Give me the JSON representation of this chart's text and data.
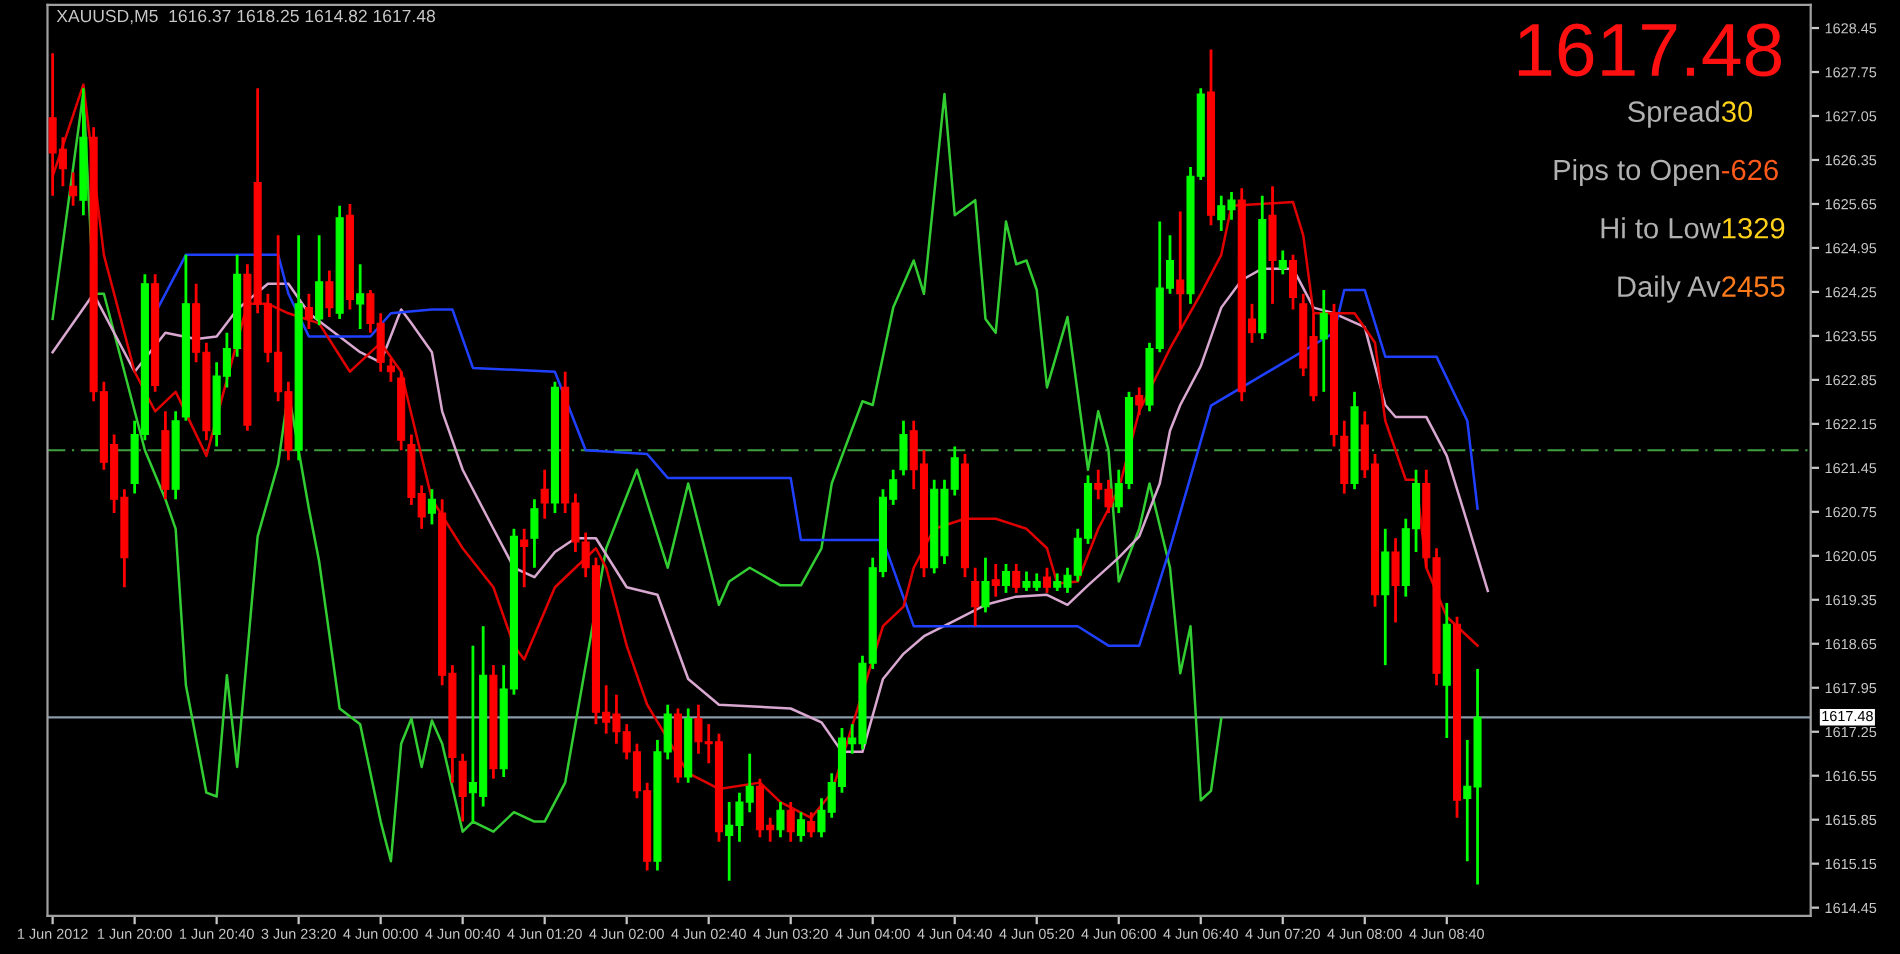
{
  "chart_data": {
    "type": "candlestick",
    "title": "XAUUSD,M5  1616.37 1618.25 1614.82 1617.48",
    "categories": [
      "1 Jun 2012",
      null,
      null,
      null,
      null,
      null,
      null,
      null,
      "1 Jun 20:00",
      null,
      null,
      null,
      null,
      null,
      null,
      null,
      "1 Jun 20:40",
      null,
      null,
      null,
      null,
      null,
      null,
      null,
      "3 Jun 23:20",
      null,
      null,
      null,
      null,
      null,
      null,
      null,
      "4 Jun 00:00",
      null,
      null,
      null,
      null,
      null,
      null,
      null,
      "4 Jun 00:40",
      null,
      null,
      null,
      null,
      null,
      null,
      null,
      "4 Jun 01:20",
      null,
      null,
      null,
      null,
      null,
      null,
      null,
      "4 Jun 02:00",
      null,
      null,
      null,
      null,
      null,
      null,
      null,
      "4 Jun 02:40",
      null,
      null,
      null,
      null,
      null,
      null,
      null,
      "4 Jun 03:20",
      null,
      null,
      null,
      null,
      null,
      null,
      null,
      "4 Jun 04:00",
      null,
      null,
      null,
      null,
      null,
      null,
      null,
      "4 Jun 04:40",
      null,
      null,
      null,
      null,
      null,
      null,
      null,
      "4 Jun 05:20",
      null,
      null,
      null,
      null,
      null,
      null,
      null,
      "4 Jun 06:00",
      null,
      null,
      null,
      null,
      null,
      null,
      null,
      "4 Jun 06:40",
      null,
      null,
      null,
      null,
      null,
      null,
      null,
      "4 Jun 07:20",
      null,
      null,
      null,
      null,
      null,
      null,
      null,
      "4 Jun 08:00",
      null,
      null,
      null,
      null,
      null,
      null,
      null,
      "4 Jun 08:40",
      null,
      null,
      null,
      null,
      null,
      null,
      null,
      null,
      null,
      null,
      null,
      null,
      null,
      null,
      null,
      null,
      null,
      null,
      null,
      null,
      null,
      null,
      null,
      null,
      null,
      null,
      null,
      null,
      null,
      null,
      null,
      null,
      null,
      null,
      null
    ],
    "colors": [
      "#ff0000",
      "#ff0000",
      "#ff0000",
      "#00ff00",
      "#ff0000",
      "#ff0000",
      "#ff0000",
      "#ff0000",
      "#00ff00",
      "#00ff00",
      "#ff0000",
      "#ff0000",
      "#00ff00",
      "#00ff00",
      "#ff0000",
      "#ff0000",
      "#00ff00",
      "#00ff00",
      "#00ff00",
      "#ff0000",
      "#ff0000",
      "#ff0000",
      "#ff0000",
      "#ff0000",
      "#00ff00",
      "#ff0000",
      "#00ff00",
      "#ff0000",
      "#00ff00",
      "#ff0000",
      "#00ff00",
      "#ff0000",
      "#ff0000",
      "#ff0000",
      "#ff0000",
      "#ff0000",
      "#ff0000",
      "#00ff00",
      "#ff0000",
      "#ff0000",
      "#ff0000",
      "#00ff00",
      "#00ff00",
      "#ff0000",
      "#00ff00",
      "#00ff00",
      "#ff0000",
      "#00ff00",
      "#ff0000",
      "#00ff00",
      "#ff0000",
      "#ff0000",
      "#ff0000",
      "#ff0000",
      "#ff0000",
      "#ff0000",
      "#ff0000",
      "#ff0000",
      "#ff0000",
      "#00ff00",
      "#00ff00",
      "#ff0000",
      "#00ff00",
      "#ff0000",
      "#ff0000",
      "#ff0000",
      "#00ff00",
      "#00ff00",
      "#00ff00",
      "#ff0000",
      "#ff0000",
      "#00ff00",
      "#ff0000",
      "#00ff00",
      "#ff0000",
      "#00ff00",
      "#00ff00",
      "#00ff00",
      "#00ff00",
      "#00ff00",
      "#00ff00",
      "#00ff00",
      "#00ff00",
      "#00ff00",
      "#ff0000",
      "#ff0000",
      "#00ff00",
      "#00ff00",
      "#00ff00",
      "#ff0000",
      "#ff0000",
      "#00ff00",
      "#ff0000",
      "#00ff00",
      "#ff0000",
      "#00ff00",
      "#00ff00",
      "#ff0000",
      "#00ff00",
      "#00ff00",
      "#00ff00",
      "#00ff00",
      "#ff0000",
      "#ff0000",
      "#00ff00",
      "#00ff00",
      "#ff0000",
      "#00ff00",
      "#00ff00",
      "#00ff00",
      "#ff0000",
      "#00ff00",
      "#00ff00",
      "#ff0000",
      "#00ff00",
      "#00ff00",
      "#ff0000",
      "#ff0000",
      "#00ff00",
      "#ff0000",
      "#00ff00",
      "#ff0000",
      "#ff0000",
      "#ff0000",
      "#00ff00",
      "#ff0000",
      "#ff0000",
      "#00ff00",
      "#ff0000",
      "#ff0000",
      "#00ff00",
      "#ff0000",
      "#00ff00",
      "#00ff00",
      "#ff0000",
      "#ff0000",
      "#00ff00",
      "#ff0000",
      "#00ff00",
      "#00ff00",
      null,
      null,
      null,
      null,
      null,
      null,
      null,
      null,
      null,
      null,
      null,
      null,
      null,
      null,
      null,
      null,
      null,
      null,
      null,
      null,
      null,
      null,
      null,
      null,
      null,
      null,
      null,
      null,
      null,
      null,
      null,
      null
    ],
    "ohlc": [
      [
        1627.02,
        1628.05,
        1625.78,
        1626.46
      ],
      [
        1626.52,
        1626.71,
        1625.93,
        1626.21
      ],
      [
        1625.93,
        1626.15,
        1625.62,
        1625.78
      ],
      [
        1625.71,
        1627.49,
        1625.47,
        1626.71
      ],
      [
        1626.71,
        1626.87,
        1622.51,
        1622.66
      ],
      [
        1622.66,
        1622.82,
        1621.42,
        1621.54
      ],
      [
        1621.82,
        1621.98,
        1620.73,
        1620.95
      ],
      [
        1620.98,
        1621.11,
        1619.55,
        1620.02
      ],
      [
        1621.2,
        1622.2,
        1621.04,
        1621.98
      ],
      [
        1621.98,
        1624.53,
        1621.89,
        1624.38
      ],
      [
        1624.38,
        1624.53,
        1622.66,
        1622.76
      ],
      [
        1622.04,
        1622.35,
        1620.95,
        1621.11
      ],
      [
        1621.11,
        1622.35,
        1620.95,
        1622.2
      ],
      [
        1622.26,
        1624.84,
        1622.2,
        1624.06
      ],
      [
        1624.06,
        1624.38,
        1623.13,
        1623.29
      ],
      [
        1623.29,
        1623.44,
        1621.89,
        1622.04
      ],
      [
        1621.98,
        1623.13,
        1621.79,
        1622.91
      ],
      [
        1622.91,
        1623.6,
        1622.73,
        1623.35
      ],
      [
        1623.35,
        1624.84,
        1623.22,
        1624.53
      ],
      [
        1624.53,
        1624.69,
        1622.04,
        1622.13
      ],
      [
        1625.99,
        1627.49,
        1623.91,
        1624.06
      ],
      [
        1624.06,
        1624.22,
        1623.13,
        1623.29
      ],
      [
        1623.29,
        1625.15,
        1622.51,
        1622.66
      ],
      [
        1622.66,
        1622.82,
        1621.57,
        1621.73
      ],
      [
        1621.73,
        1625.15,
        1621.57,
        1624.06
      ],
      [
        1624.0,
        1624.22,
        1623.66,
        1623.82
      ],
      [
        1623.82,
        1625.15,
        1623.72,
        1624.41
      ],
      [
        1624.41,
        1624.59,
        1623.85,
        1624.0
      ],
      [
        1623.91,
        1625.62,
        1623.82,
        1625.43
      ],
      [
        1625.47,
        1625.65,
        1623.97,
        1624.13
      ],
      [
        1624.06,
        1624.69,
        1623.66,
        1624.22
      ],
      [
        1624.22,
        1624.28,
        1623.6,
        1623.75
      ],
      [
        1623.75,
        1623.91,
        1622.98,
        1623.13
      ],
      [
        1623.07,
        1623.19,
        1622.82,
        1622.98
      ],
      [
        1622.88,
        1622.98,
        1621.73,
        1621.89
      ],
      [
        1621.82,
        1621.98,
        1620.86,
        1620.98
      ],
      [
        1621.04,
        1621.17,
        1620.48,
        1620.67
      ],
      [
        1620.73,
        1621.11,
        1620.55,
        1620.95
      ],
      [
        1620.73,
        1620.95,
        1617.99,
        1618.15
      ],
      [
        1618.18,
        1618.31,
        1616.44,
        1616.84
      ],
      [
        1616.78,
        1616.9,
        1615.82,
        1616.22
      ],
      [
        1616.28,
        1618.62,
        1615.82,
        1616.44
      ],
      [
        1616.22,
        1618.93,
        1616.06,
        1618.15
      ],
      [
        1618.15,
        1618.31,
        1616.5,
        1616.66
      ],
      [
        1616.66,
        1618.31,
        1616.53,
        1617.93
      ],
      [
        1617.93,
        1620.48,
        1617.84,
        1620.36
      ],
      [
        1620.3,
        1620.48,
        1619.55,
        1620.2
      ],
      [
        1620.33,
        1620.95,
        1619.86,
        1620.8
      ],
      [
        1621.11,
        1621.42,
        1620.64,
        1620.89
      ],
      [
        1620.89,
        1622.82,
        1620.73,
        1622.73
      ],
      [
        1622.73,
        1622.98,
        1620.73,
        1620.89
      ],
      [
        1620.89,
        1621.04,
        1620.11,
        1620.27
      ],
      [
        1620.27,
        1620.42,
        1619.71,
        1619.86
      ],
      [
        1619.89,
        1620.02,
        1617.37,
        1617.56
      ],
      [
        1617.56,
        1617.99,
        1617.22,
        1617.4
      ],
      [
        1617.53,
        1617.84,
        1617.06,
        1617.25
      ],
      [
        1617.25,
        1617.37,
        1616.81,
        1616.93
      ],
      [
        1616.93,
        1617.06,
        1616.19,
        1616.31
      ],
      [
        1616.31,
        1616.44,
        1615.04,
        1615.19
      ],
      [
        1615.19,
        1617.12,
        1615.04,
        1616.93
      ],
      [
        1616.93,
        1617.68,
        1616.81,
        1617.53
      ],
      [
        1617.53,
        1617.62,
        1616.44,
        1616.53
      ],
      [
        1616.53,
        1617.62,
        1616.44,
        1617.46
      ],
      [
        1617.46,
        1617.68,
        1616.9,
        1617.09
      ],
      [
        1617.09,
        1617.37,
        1616.75,
        1617.06
      ],
      [
        1617.09,
        1617.22,
        1615.5,
        1615.66
      ],
      [
        1615.6,
        1616.13,
        1614.88,
        1615.76
      ],
      [
        1615.76,
        1616.28,
        1615.5,
        1616.13
      ],
      [
        1616.13,
        1616.9,
        1615.97,
        1616.38
      ],
      [
        1616.38,
        1616.5,
        1615.57,
        1615.69
      ],
      [
        1615.76,
        1615.88,
        1615.5,
        1615.69
      ],
      [
        1615.69,
        1616.13,
        1615.57,
        1616.0
      ],
      [
        1616.0,
        1616.13,
        1615.5,
        1615.66
      ],
      [
        1615.6,
        1615.97,
        1615.5,
        1615.85
      ],
      [
        1615.82,
        1615.97,
        1615.57,
        1615.66
      ],
      [
        1615.66,
        1616.19,
        1615.57,
        1616.0
      ],
      [
        1615.97,
        1616.59,
        1615.88,
        1616.44
      ],
      [
        1616.38,
        1617.31,
        1616.28,
        1617.15
      ],
      [
        1617.06,
        1617.37,
        1616.9,
        1617.15
      ],
      [
        1617.06,
        1618.46,
        1616.97,
        1618.34
      ],
      [
        1618.34,
        1620.02,
        1618.25,
        1619.86
      ],
      [
        1619.8,
        1621.11,
        1619.71,
        1620.98
      ],
      [
        1620.95,
        1621.42,
        1620.86,
        1621.26
      ],
      [
        1621.42,
        1622.2,
        1621.33,
        1621.98
      ],
      [
        1622.04,
        1622.2,
        1621.11,
        1621.42
      ],
      [
        1621.51,
        1621.73,
        1619.71,
        1619.86
      ],
      [
        1619.86,
        1621.26,
        1619.77,
        1621.11
      ],
      [
        1620.05,
        1621.26,
        1619.92,
        1621.11
      ],
      [
        1621.11,
        1621.79,
        1621.01,
        1621.61
      ],
      [
        1621.51,
        1621.67,
        1619.71,
        1619.86
      ],
      [
        1619.64,
        1619.86,
        1618.93,
        1619.24
      ],
      [
        1619.24,
        1620.02,
        1619.15,
        1619.64
      ],
      [
        1619.67,
        1619.92,
        1619.4,
        1619.58
      ],
      [
        1619.58,
        1619.92,
        1619.46,
        1619.8
      ],
      [
        1619.8,
        1619.92,
        1619.46,
        1619.55
      ],
      [
        1619.55,
        1619.8,
        1619.49,
        1619.64
      ],
      [
        1619.55,
        1619.77,
        1619.49,
        1619.64
      ],
      [
        1619.71,
        1619.86,
        1619.46,
        1619.55
      ],
      [
        1619.55,
        1619.77,
        1619.49,
        1619.64
      ],
      [
        1619.55,
        1619.86,
        1619.46,
        1619.74
      ],
      [
        1619.74,
        1620.48,
        1619.64,
        1620.33
      ],
      [
        1620.33,
        1621.33,
        1620.24,
        1621.2
      ],
      [
        1621.2,
        1621.42,
        1620.95,
        1621.11
      ],
      [
        1621.11,
        1621.26,
        1620.73,
        1620.83
      ],
      [
        1620.83,
        1621.42,
        1620.73,
        1621.2
      ],
      [
        1621.2,
        1622.66,
        1621.11,
        1622.57
      ],
      [
        1622.6,
        1622.73,
        1622.29,
        1622.45
      ],
      [
        1622.45,
        1623.44,
        1622.35,
        1623.35
      ],
      [
        1623.35,
        1625.37,
        1623.29,
        1624.31
      ],
      [
        1624.31,
        1625.15,
        1624.22,
        1624.75
      ],
      [
        1624.44,
        1625.53,
        1623.66,
        1624.22
      ],
      [
        1624.22,
        1626.24,
        1624.06,
        1626.09
      ],
      [
        1626.09,
        1627.49,
        1626.03,
        1627.4
      ],
      [
        1627.43,
        1628.11,
        1625.31,
        1625.47
      ],
      [
        1625.4,
        1625.78,
        1625.22,
        1625.62
      ],
      [
        1625.56,
        1625.84,
        1625.4,
        1625.71
      ],
      [
        1625.71,
        1625.9,
        1622.51,
        1622.66
      ],
      [
        1623.82,
        1624.06,
        1623.44,
        1623.6
      ],
      [
        1623.6,
        1625.78,
        1623.5,
        1625.4
      ],
      [
        1625.47,
        1625.93,
        1624.06,
        1624.75
      ],
      [
        1624.62,
        1624.91,
        1624.53,
        1624.75
      ],
      [
        1624.75,
        1624.84,
        1623.97,
        1624.16
      ],
      [
        1624.06,
        1624.22,
        1622.91,
        1623.04
      ],
      [
        1623.54,
        1623.91,
        1622.51,
        1622.6
      ],
      [
        1623.5,
        1624.28,
        1622.66,
        1623.91
      ],
      [
        1623.91,
        1624.06,
        1621.79,
        1621.98
      ],
      [
        1621.95,
        1622.2,
        1621.04,
        1621.2
      ],
      [
        1621.2,
        1622.66,
        1621.11,
        1622.42
      ],
      [
        1622.13,
        1622.35,
        1621.29,
        1621.42
      ],
      [
        1621.51,
        1621.67,
        1619.24,
        1619.43
      ],
      [
        1619.43,
        1620.48,
        1618.31,
        1620.11
      ],
      [
        1620.11,
        1620.33,
        1618.99,
        1619.58
      ],
      [
        1619.58,
        1620.64,
        1619.4,
        1620.48
      ],
      [
        1620.48,
        1621.42,
        1620.11,
        1621.2
      ],
      [
        1621.2,
        1621.42,
        1619.86,
        1620.02
      ],
      [
        1620.02,
        1620.17,
        1617.99,
        1618.18
      ],
      [
        1617.99,
        1619.3,
        1617.15,
        1618.96
      ],
      [
        1618.96,
        1619.08,
        1615.88,
        1616.16
      ],
      [
        1616.19,
        1617.12,
        1615.19,
        1616.38
      ],
      [
        1616.37,
        1618.25,
        1614.82,
        1617.48
      ],
      null,
      null,
      null,
      null,
      null,
      null,
      null,
      null,
      null,
      null,
      null,
      null,
      null,
      null,
      null,
      null,
      null,
      null,
      null,
      null,
      null,
      null,
      null,
      null,
      null,
      null,
      null,
      null,
      null,
      null,
      null,
      null
    ],
    "series": [
      {
        "type": "line",
        "color": "#32cd32",
        "values": [
          1623.82,
          null,
          null,
          1627.43,
          1624.22,
          1624.22,
          null,
          1622.98,
          null,
          1621.73,
          null,
          1620.95,
          1620.48,
          1617.99,
          null,
          1616.28,
          1616.22,
          1618.15,
          1616.69,
          null,
          1620.36,
          null,
          1621.51,
          1622.66,
          null,
          1620.8,
          1619.96,
          null,
          1617.62,
          null,
          1617.37,
          null,
          1615.82,
          1615.19,
          1617.06,
          1617.46,
          1616.69,
          1617.43,
          1617.06,
          null,
          1615.66,
          1615.82,
          null,
          1615.66,
          null,
          1615.97,
          null,
          1615.82,
          1615.82,
          null,
          1616.44,
          null,
          null,
          null,
          1620.17,
          null,
          null,
          1621.42,
          null,
          null,
          1619.86,
          null,
          1621.2,
          null,
          null,
          1619.27,
          1619.64,
          null,
          1619.86,
          null,
          null,
          1619.58,
          null,
          1619.58,
          null,
          1620.17,
          1621.2,
          null,
          null,
          1622.51,
          1622.45,
          null,
          1624.0,
          null,
          1624.75,
          1624.22,
          null,
          1627.4,
          1625.47,
          null,
          1625.71,
          1623.82,
          1623.6,
          1625.37,
          1624.69,
          1624.75,
          1624.28,
          1622.73,
          null,
          1623.85,
          null,
          1621.42,
          1622.35,
          1621.73,
          1619.64,
          null,
          1620.48,
          1621.2,
          null,
          1619.86,
          1618.18,
          1618.93,
          1616.16,
          1616.31,
          1617.46,
          null,
          null,
          null,
          null,
          null,
          null,
          null,
          null,
          null,
          null,
          null,
          null,
          null,
          null,
          null,
          null,
          null,
          null,
          null,
          null,
          null,
          null,
          null,
          null,
          null,
          null,
          null,
          null,
          null,
          null,
          null,
          null,
          null,
          null,
          null,
          null,
          null,
          null,
          null,
          null,
          null,
          null,
          null,
          null,
          null,
          null,
          null,
          null,
          null,
          null,
          null,
          null,
          null,
          null,
          null,
          null,
          null
        ]
      },
      {
        "type": "line",
        "color": "#d8a8d0",
        "values": [
          1623.29,
          null,
          null,
          null,
          1624.22,
          null,
          null,
          null,
          1622.98,
          null,
          null,
          1623.6,
          null,
          null,
          1623.5,
          null,
          1623.54,
          null,
          1623.97,
          null,
          null,
          1624.38,
          null,
          1624.38,
          null,
          1623.91,
          null,
          null,
          null,
          null,
          1623.29,
          null,
          1623.13,
          null,
          1623.97,
          1623.75,
          null,
          1623.29,
          1622.35,
          null,
          1621.42,
          null,
          null,
          1620.48,
          null,
          1619.86,
          null,
          1619.71,
          null,
          1620.11,
          null,
          1620.33,
          null,
          1620.33,
          null,
          null,
          1619.55,
          null,
          null,
          1619.43,
          null,
          null,
          1618.09,
          null,
          null,
          1617.68,
          null,
          null,
          null,
          null,
          null,
          null,
          1617.62,
          null,
          null,
          1617.4,
          null,
          1616.93,
          null,
          1616.93,
          null,
          1618.09,
          null,
          1618.49,
          null,
          1618.77,
          null,
          null,
          1619.02,
          null,
          null,
          1619.27,
          null,
          null,
          1619.4,
          null,
          null,
          1619.43,
          null,
          1619.27,
          null,
          1619.58,
          null,
          null,
          1620.02,
          null,
          1620.36,
          null,
          1621.2,
          1622.04,
          1622.45,
          null,
          1623.07,
          null,
          1624.0,
          null,
          1624.44,
          null,
          1624.62,
          null,
          null,
          1624.62,
          null,
          1624.0,
          null,
          1623.91,
          null,
          null,
          1623.69,
          null,
          1622.45,
          1622.26,
          null,
          null,
          1622.26,
          null,
          1621.64,
          null,
          1620.58,
          null,
          1619.49,
          null,
          null,
          null,
          null,
          null,
          null,
          null,
          null,
          null,
          null,
          null,
          null,
          null,
          null,
          null,
          null,
          null,
          null,
          null,
          null,
          null,
          null,
          null,
          null,
          null,
          null,
          null,
          null,
          null,
          null,
          null
        ]
      },
      {
        "type": "line",
        "color": "#2040ff",
        "values": [
          null,
          null,
          null,
          null,
          null,
          null,
          null,
          null,
          null,
          null,
          1623.91,
          null,
          null,
          1624.84,
          null,
          null,
          null,
          null,
          null,
          null,
          null,
          null,
          1624.84,
          1624.22,
          null,
          1623.54,
          null,
          null,
          null,
          null,
          null,
          1623.54,
          null,
          1623.91,
          null,
          null,
          null,
          1623.97,
          null,
          1623.97,
          null,
          1623.04,
          null,
          null,
          null,
          null,
          null,
          null,
          null,
          1622.98,
          null,
          null,
          1621.73,
          null,
          null,
          null,
          null,
          null,
          1621.67,
          null,
          1621.29,
          null,
          null,
          null,
          null,
          null,
          null,
          null,
          null,
          null,
          null,
          null,
          1621.29,
          1620.3,
          null,
          null,
          null,
          null,
          null,
          null,
          null,
          1620.3,
          null,
          null,
          1618.93,
          null,
          null,
          null,
          null,
          null,
          null,
          null,
          null,
          null,
          null,
          null,
          null,
          null,
          null,
          null,
          1618.93,
          null,
          null,
          1618.62,
          null,
          null,
          1618.62,
          null,
          null,
          1620.17,
          null,
          null,
          null,
          1622.44,
          null,
          null,
          null,
          null,
          null,
          null,
          null,
          null,
          null,
          null,
          null,
          1623.6,
          1624.28,
          null,
          1624.28,
          null,
          1623.22,
          null,
          null,
          null,
          null,
          1623.22,
          null,
          null,
          1622.2,
          1620.8,
          null,
          null,
          null,
          null,
          null,
          null,
          null,
          null,
          null,
          null,
          null,
          null,
          null,
          null,
          null,
          null,
          null,
          null,
          null,
          null,
          null,
          null,
          null,
          null,
          null,
          null,
          null,
          null,
          null,
          null,
          null,
          null
        ]
      },
      {
        "type": "line",
        "color": "#e00000",
        "values": [
          1626.09,
          null,
          null,
          1627.55,
          null,
          1624.84,
          null,
          null,
          1622.98,
          null,
          1622.35,
          null,
          1622.66,
          null,
          null,
          1621.64,
          null,
          null,
          null,
          1624.06,
          null,
          1624.06,
          null,
          1623.91,
          null,
          null,
          1623.75,
          null,
          null,
          1622.98,
          null,
          null,
          1623.44,
          null,
          1622.98,
          null,
          null,
          1620.95,
          null,
          null,
          1620.17,
          null,
          null,
          1619.55,
          null,
          1618.62,
          1618.4,
          null,
          null,
          1619.55,
          null,
          1619.86,
          null,
          1620.17,
          1619.86,
          null,
          1618.62,
          null,
          1617.68,
          null,
          null,
          null,
          1616.59,
          null,
          null,
          1616.34,
          null,
          null,
          null,
          1616.44,
          null,
          1616.13,
          null,
          null,
          1615.88,
          null,
          1616.28,
          null,
          null,
          null,
          null,
          1618.93,
          null,
          1619.24,
          1619.86,
          null,
          1620.48,
          null,
          null,
          1620.64,
          null,
          null,
          1620.64,
          null,
          null,
          1620.48,
          null,
          1620.17,
          1619.61,
          null,
          1619.64,
          null,
          1620.48,
          null,
          1621.11,
          null,
          1622.35,
          null,
          null,
          1623.35,
          null,
          null,
          1624.22,
          null,
          1624.84,
          1625.62,
          null,
          null,
          null,
          null,
          null,
          1625.68,
          1625.15,
          1623.91,
          null,
          null,
          null,
          1623.91,
          null,
          1623.44,
          1622.2,
          null,
          1621.26,
          1621.26,
          1619.86,
          null,
          1619.08,
          null,
          null,
          1618.62,
          null,
          null,
          null,
          null,
          null,
          null,
          null,
          null,
          null,
          null,
          null,
          null,
          null,
          null,
          null,
          null,
          null,
          null,
          null,
          null,
          null,
          null,
          null,
          null,
          null,
          null,
          null,
          null,
          null,
          null,
          null,
          null
        ]
      }
    ],
    "ylim": [
      1614.32,
      1628.82
    ],
    "yticks": [
      1614.45,
      1615.15,
      1615.85,
      1616.55,
      1617.25,
      1617.95,
      1618.65,
      1619.35,
      1620.05,
      1620.75,
      1621.45,
      1622.15,
      1622.85,
      1623.55,
      1624.25,
      1624.95,
      1625.65,
      1626.35,
      1627.05,
      1627.75,
      1628.45
    ],
    "ref_lines": [
      {
        "axis": "y",
        "value": 1617.48,
        "label": "1617.48",
        "color": "#8a9aa8",
        "line_style": "solid"
      },
      {
        "axis": "y",
        "value": 1621.73,
        "color": "#40a040",
        "line_style": "dashed"
      }
    ],
    "annotations": [
      "1617.48",
      "Spread",
      "30",
      "Pips to Open",
      "-626",
      "Hi to Low",
      "1329",
      "Daily Av",
      "2455"
    ],
    "grid": false
  }
}
